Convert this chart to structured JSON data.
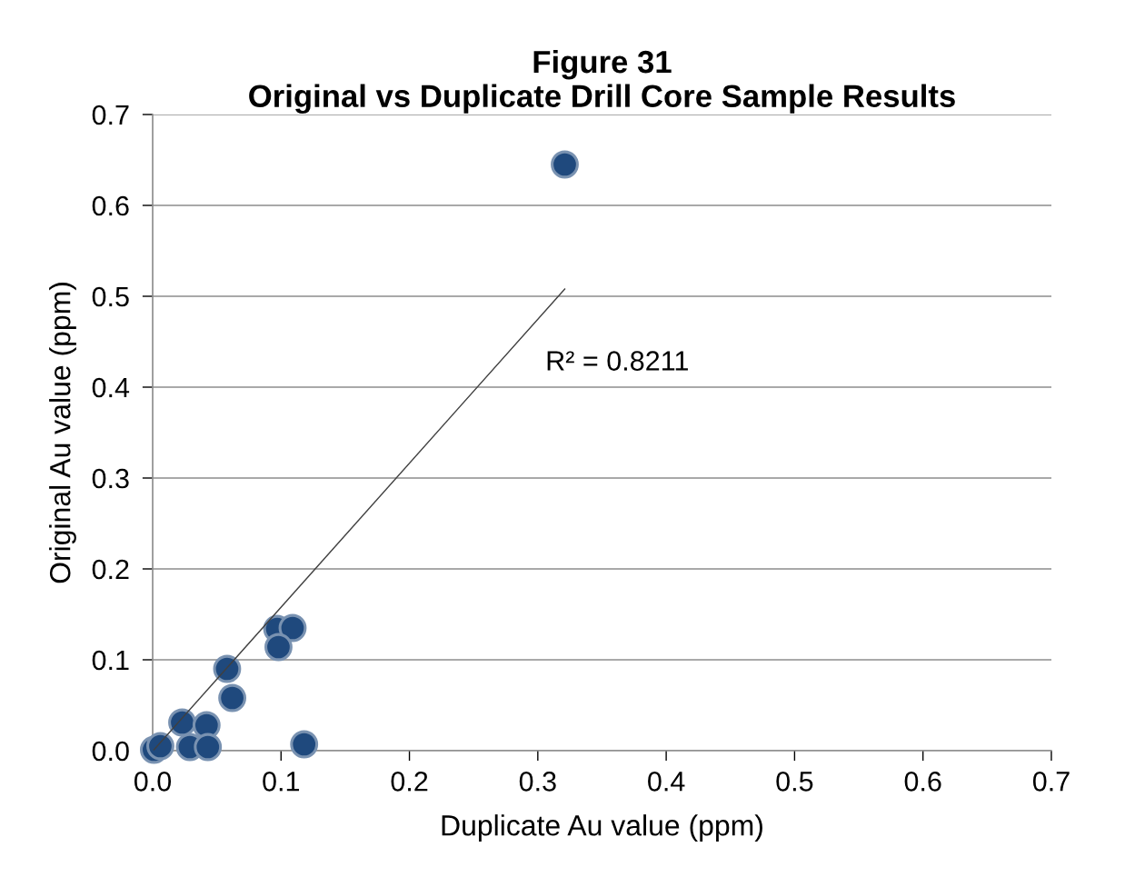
{
  "chart_data": {
    "type": "scatter",
    "title": "Figure 31\nOriginal vs Duplicate Drill Core Sample Results",
    "xlabel": "Duplicate Au value (ppm)",
    "ylabel": "Original Au value (ppm)",
    "series": [
      {
        "color": "#1f497d",
        "marker": "circle",
        "x": [
          0.001,
          0.006,
          0.023,
          0.042,
          0.029,
          0.043,
          0.058,
          0.062,
          0.097,
          0.109,
          0.098,
          0.118,
          0.321
        ],
        "values": [
          0.001,
          0.005,
          0.031,
          0.028,
          0.004,
          0.004,
          0.09,
          0.058,
          0.134,
          0.135,
          0.114,
          0.007,
          0.645
        ]
      },
      {
        "type": "line",
        "color": "#404040",
        "marker": "none",
        "line_style": "solid",
        "x": [
          0.001,
          0.321
        ],
        "values": [
          0.001,
          0.508
        ]
      }
    ],
    "annotations": [
      "R² = 0.8211"
    ],
    "xlim": [
      0,
      0.7
    ],
    "ylim": [
      0,
      0.7
    ],
    "xticks": [
      {
        "value": 0,
        "label": "0.0"
      },
      0.1,
      0.2,
      0.3,
      0.4,
      0.5,
      0.6,
      0.7
    ],
    "yticks": [
      {
        "value": 0,
        "label": "0.0"
      },
      0.1,
      0.2,
      0.3,
      0.4,
      0.5,
      0.6,
      0.7
    ],
    "grid": "y"
  }
}
